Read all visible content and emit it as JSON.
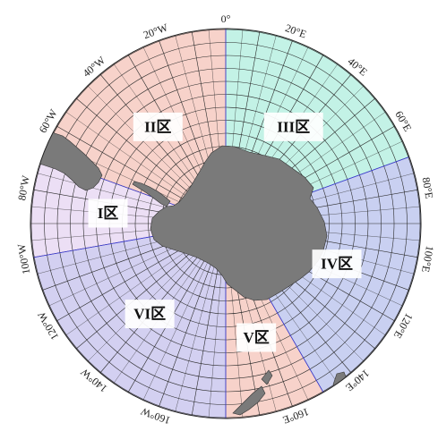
{
  "map": {
    "projection": "south-polar-stereographic",
    "colors": {
      "zone_I": "#ecdff5",
      "zone_II": "#f7d2ca",
      "zone_III": "#c3f2e6",
      "zone_IV": "#c9d0f1",
      "zone_V": "#f7d2ca",
      "zone_VI": "#d3d0f1",
      "grid": "#2a2a2a",
      "land": "#7a7a7a",
      "boundary_line": "#3b3bd9"
    },
    "zones": [
      {
        "id": "I",
        "label": "I区",
        "lon_start": -100,
        "lon_end": -70
      },
      {
        "id": "II",
        "label": "II区",
        "lon_start": -70,
        "lon_end": 0
      },
      {
        "id": "III",
        "label": "III区",
        "lon_start": 0,
        "lon_end": 70
      },
      {
        "id": "IV",
        "label": "IV区",
        "lon_start": 70,
        "lon_end": 150
      },
      {
        "id": "V",
        "label": "V区",
        "lon_start": 150,
        "lon_end": 180
      },
      {
        "id": "VI",
        "label": "VI区",
        "lon_start": -180,
        "lon_end": -100
      }
    ],
    "longitude_labels": [
      {
        "lon": 0,
        "text": "0°"
      },
      {
        "lon": 20,
        "text": "20°E"
      },
      {
        "lon": 40,
        "text": "40°E"
      },
      {
        "lon": 60,
        "text": "60°E"
      },
      {
        "lon": 80,
        "text": "80°E"
      },
      {
        "lon": 100,
        "text": "100°E"
      },
      {
        "lon": 120,
        "text": "120°E"
      },
      {
        "lon": 140,
        "text": "140°E"
      },
      {
        "lon": 160,
        "text": "160°E"
      },
      {
        "lon": -20,
        "text": "20°W"
      },
      {
        "lon": -40,
        "text": "40°W"
      },
      {
        "lon": -60,
        "text": "60°W"
      },
      {
        "lon": -80,
        "text": "80°W"
      },
      {
        "lon": -100,
        "text": "100°W"
      },
      {
        "lon": -120,
        "text": "120°W"
      },
      {
        "lon": -140,
        "text": "140°W"
      },
      {
        "lon": -160,
        "text": "160°W"
      }
    ]
  }
}
